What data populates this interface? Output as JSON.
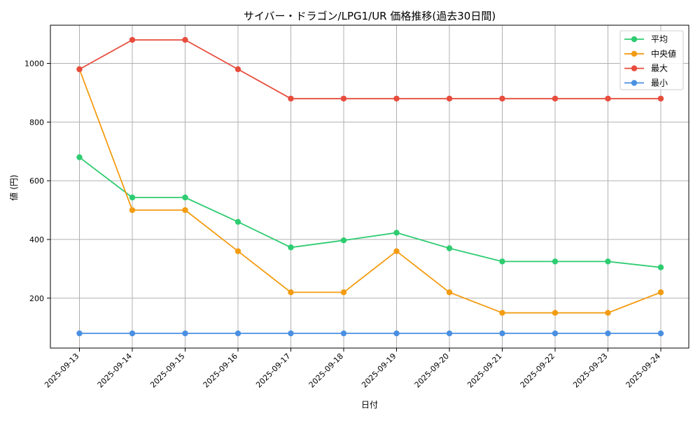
{
  "chart_data": {
    "type": "line",
    "title": "サイバー・ドラゴン/LPG1/UR 価格推移(過去30日間)",
    "xlabel": "日付",
    "ylabel": "値 (円)",
    "categories": [
      "2025-09-13",
      "2025-09-14",
      "2025-09-15",
      "2025-09-16",
      "2025-09-17",
      "2025-09-18",
      "2025-09-19",
      "2025-09-20",
      "2025-09-21",
      "2025-09-22",
      "2025-09-23",
      "2025-09-24"
    ],
    "ylim": [
      30,
      1130
    ],
    "yticks": [
      200,
      400,
      600,
      800,
      1000
    ],
    "grid": true,
    "legend_position": "top-right",
    "series": [
      {
        "name": "平均",
        "color": "#2ecc71",
        "values": [
          680,
          543,
          543,
          460,
          373,
          397,
          423,
          370,
          325,
          325,
          325,
          305
        ]
      },
      {
        "name": "中央値",
        "color": "#f39c12",
        "values": [
          980,
          500,
          500,
          360,
          220,
          220,
          360,
          220,
          150,
          150,
          150,
          220
        ]
      },
      {
        "name": "最大",
        "color": "#e74c3c",
        "values": [
          980,
          1080,
          1080,
          980,
          880,
          880,
          880,
          880,
          880,
          880,
          880,
          880
        ]
      },
      {
        "name": "最小",
        "color": "#4a90e2",
        "values": [
          80,
          80,
          80,
          80,
          80,
          80,
          80,
          80,
          80,
          80,
          80,
          80
        ]
      }
    ]
  }
}
